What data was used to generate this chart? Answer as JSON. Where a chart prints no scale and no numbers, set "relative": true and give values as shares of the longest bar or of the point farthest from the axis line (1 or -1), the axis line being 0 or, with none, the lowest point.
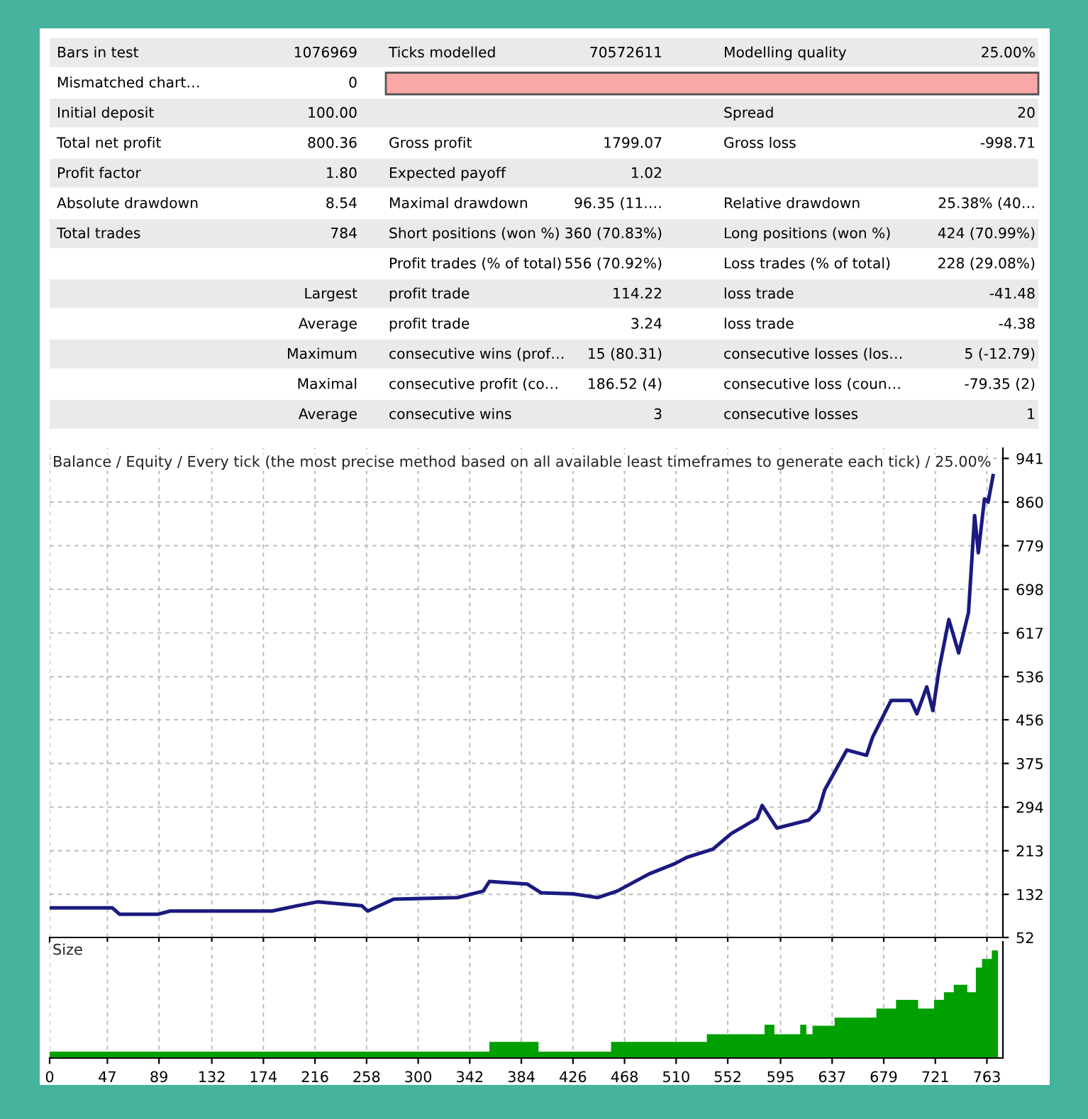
{
  "chart_data": [
    {
      "type": "other",
      "annotations": [
        "Bars in test",
        "1076969",
        "Ticks modelled",
        "70572611",
        "Modelling quality",
        "25.00%",
        "Mismatched chart…",
        "0",
        null,
        null,
        null,
        null,
        "Initial deposit",
        "100.00",
        null,
        null,
        "Spread",
        "20",
        "Total net profit",
        "800.36",
        "Gross profit",
        "1799.07",
        "Gross loss",
        "-998.71",
        "Profit factor",
        "1.80",
        "Expected payoff",
        "1.02",
        null,
        null,
        "Absolute drawdown",
        "8.54",
        "Maximal drawdown",
        "96.35 (11.…",
        "Relative drawdown",
        "25.38% (40…",
        "Total trades",
        "784",
        "Short positions (won %)",
        "360 (70.83%)",
        "Long positions (won %)",
        "424 (70.99%)",
        null,
        null,
        "Profit trades (% of total)",
        "556 (70.92%)",
        "Loss trades (% of total)",
        "228 (29.08%)",
        "Largest",
        null,
        "profit trade",
        "114.22",
        "loss trade",
        "-41.48",
        "Average",
        null,
        "profit trade",
        "3.24",
        "loss trade",
        "-4.38",
        "Maximum",
        null,
        "consecutive wins (prof…",
        "15 (80.31)",
        "consecutive losses (los…",
        "5 (-12.79)",
        "Maximal",
        null,
        "consecutive profit (co…",
        "186.52 (4)",
        "consecutive loss (coun…",
        "-79.35 (2)",
        "Average",
        null,
        "consecutive wins",
        "3",
        "consecutive losses",
        "1"
      ]
    },
    {
      "type": "line",
      "title": "Balance / Equity / Every tick (the most precise method based on all available least timeframes to generate each tick) / 25.00%",
      "xlim": [
        0,
        776
      ],
      "ylim": [
        52,
        960
      ],
      "tick_labels": "y",
      "grid": true,
      "line_style": "solid",
      "xticks": [
        0,
        47,
        89,
        132,
        174,
        216,
        258,
        300,
        342,
        384,
        426,
        468,
        510,
        552,
        595,
        637,
        679,
        721,
        763
      ],
      "yticks": [
        52,
        132,
        213,
        294,
        375,
        456,
        536,
        617,
        698,
        779,
        860,
        941
      ],
      "series": [
        {
          "color": "#1a1a80",
          "x": [
            0,
            51,
            57,
            88,
            98,
            181,
            202,
            218,
            254,
            259,
            280,
            332,
            353,
            358,
            389,
            400,
            426,
            446,
            462,
            488,
            509,
            519,
            540,
            555,
            576,
            580,
            592,
            618,
            626,
            631,
            649,
            665,
            670,
            685,
            701,
            706,
            714,
            719,
            724,
            732,
            740,
            748,
            753,
            756,
            761,
            764,
            768
          ],
          "values": [
            107,
            107,
            95,
            95,
            101,
            101,
            111,
            118,
            111,
            101,
            123,
            126,
            138,
            156,
            151,
            135,
            133,
            126,
            138,
            170,
            189,
            201,
            216,
            245,
            273,
            297,
            255,
            270,
            288,
            326,
            400,
            390,
            424,
            492,
            492,
            467,
            517,
            473,
            549,
            642,
            580,
            655,
            835,
            766,
            866,
            860,
            909
          ]
        }
      ]
    },
    {
      "type": "area",
      "title": "Size",
      "relative": true,
      "xlim": [
        0,
        776
      ],
      "tick_labels": "x",
      "grid": "x",
      "xticks": [
        0,
        47,
        89,
        132,
        174,
        216,
        258,
        300,
        342,
        384,
        426,
        468,
        510,
        552,
        595,
        637,
        679,
        721,
        763
      ],
      "series": [
        {
          "color": "#00a000",
          "x": [
            0,
            358,
            398,
            408,
            457,
            535,
            582,
            590,
            611,
            616,
            621,
            639,
            673,
            689,
            697,
            707,
            720,
            728,
            736,
            747,
            754,
            759,
            767,
            772
          ],
          "values": [
            0.06,
            0.15,
            0.06,
            0.06,
            0.15,
            0.22,
            0.31,
            0.22,
            0.31,
            0.22,
            0.3,
            0.375,
            0.46,
            0.54,
            0.54,
            0.46,
            0.54,
            0.61,
            0.68,
            0.61,
            0.84,
            0.92,
            1.0,
            1.0
          ]
        }
      ]
    }
  ]
}
